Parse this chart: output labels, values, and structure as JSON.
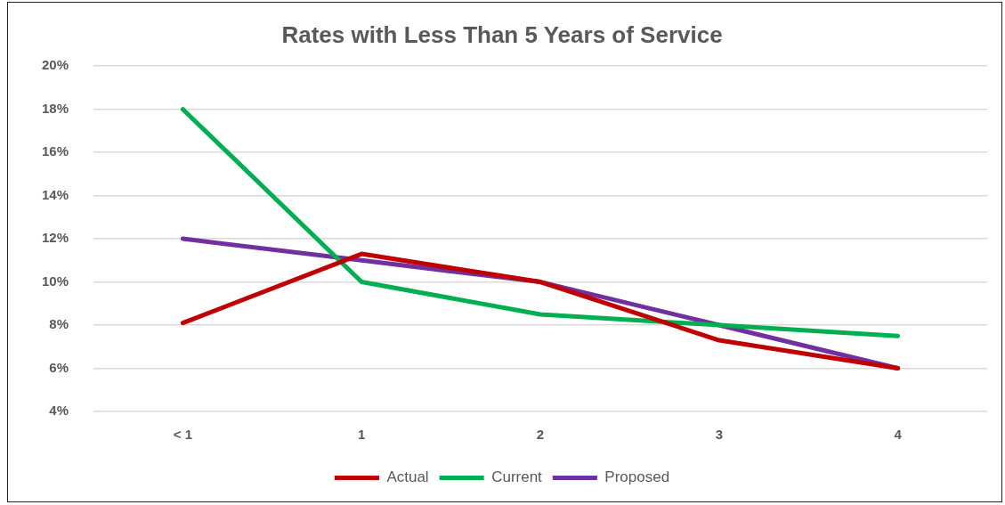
{
  "chart_data": {
    "type": "line",
    "title": "Rates with Less Than 5 Years of Service",
    "categories": [
      "< 1",
      "1",
      "2",
      "3",
      "4"
    ],
    "series": [
      {
        "name": "Actual",
        "color": "#c00000",
        "values": [
          8.1,
          11.3,
          10,
          7.3,
          6
        ]
      },
      {
        "name": "Current",
        "color": "#00b050",
        "values": [
          18,
          10,
          8.5,
          8,
          7.5
        ]
      },
      {
        "name": "Proposed",
        "color": "#7030a0",
        "values": [
          12,
          11,
          10,
          8,
          6
        ]
      }
    ],
    "ylim": [
      4,
      20
    ],
    "yticks": [
      {
        "value": 4,
        "label": "4%"
      },
      {
        "value": 6,
        "label": "6%"
      },
      {
        "value": 8,
        "label": "8%"
      },
      {
        "value": 10,
        "label": "10%"
      },
      {
        "value": 12,
        "label": "12%"
      },
      {
        "value": 14,
        "label": "14%"
      },
      {
        "value": 16,
        "label": "16%"
      },
      {
        "value": 18,
        "label": "18%"
      },
      {
        "value": 20,
        "label": "20%"
      }
    ],
    "grid": "y",
    "legend": "bottom",
    "marker": "none",
    "line_style": "solid"
  }
}
